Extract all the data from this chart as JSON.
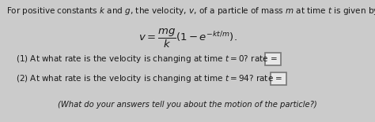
{
  "title_text": "For positive constants $k$ and $g$, the velocity, $v$, of a particle of mass $m$ at time $t$ is given by",
  "formula": "$v = \\dfrac{mg}{k}\\left(1 - e^{-kt/m}\\right).$",
  "q1_text": "(1) At what rate is the velocity is changing at time $t = 0$? rate =",
  "q2_text": "(2) At what rate is the velocity is changing at time $t = 94$? rate =",
  "footer_text": "(What do your answers tell you about the motion of the particle?)",
  "bg_color": "#cbcbcb",
  "text_color": "#1a1a1a",
  "title_fontsize": 7.5,
  "body_fontsize": 7.5,
  "formula_fontsize": 9.5,
  "footer_fontsize": 7.2
}
